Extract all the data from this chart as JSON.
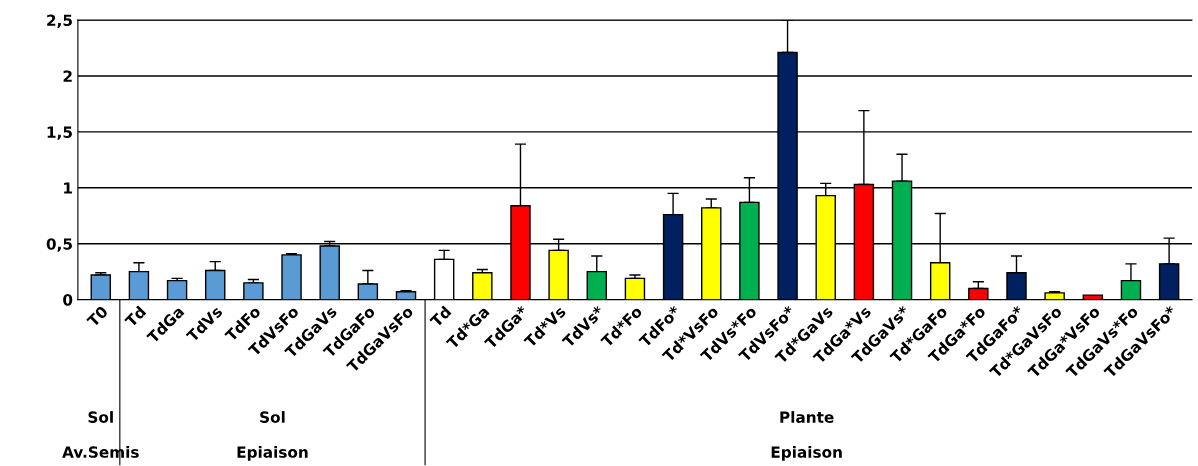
{
  "chart_data": {
    "type": "bar",
    "categories": [
      "T0",
      "Td",
      "TdGa",
      "TdVs",
      "TdFo",
      "TdVsFo",
      "TdGaVs",
      "TdGaFo",
      "TdGaVsFo",
      "Td",
      "Td*Ga",
      "TdGa*",
      "Td*Vs",
      "TdVs*",
      "Td*Fo",
      "TdFo*",
      "Td*VsFo",
      "TdVs*Fo",
      "TdVsFo*",
      "Td*GaVs",
      "TdGa*Vs",
      "TdGaVs*",
      "Td*GaFo",
      "TdGa*Fo",
      "TdGaFo*",
      "Td*GaVsFo",
      "TdGa*VsFo",
      "TdGaVs*Fo",
      "TdGaVsFo*"
    ],
    "values": [
      0.22,
      0.25,
      0.17,
      0.26,
      0.15,
      0.4,
      0.48,
      0.14,
      0.07,
      0.36,
      0.24,
      0.84,
      0.44,
      0.25,
      0.19,
      0.76,
      0.82,
      0.87,
      2.21,
      0.93,
      1.03,
      1.06,
      0.33,
      0.1,
      0.24,
      0.06,
      0.04,
      0.17,
      0.32
    ],
    "errors": [
      [
        0.22,
        0.24
      ],
      [
        0.25,
        0.33
      ],
      [
        0.17,
        0.19
      ],
      [
        0.26,
        0.34
      ],
      [
        0.15,
        0.18
      ],
      [
        0.4,
        0.41
      ],
      [
        0.48,
        0.52
      ],
      [
        0.14,
        0.26
      ],
      [
        0.07,
        0.08
      ],
      [
        0.36,
        0.44
      ],
      [
        0.24,
        0.27
      ],
      [
        0.84,
        1.39
      ],
      [
        0.44,
        0.54
      ],
      [
        0.25,
        0.39
      ],
      [
        0.19,
        0.22
      ],
      [
        0.76,
        0.95
      ],
      [
        0.82,
        0.9
      ],
      [
        0.87,
        1.09
      ],
      [
        2.21,
        2.5
      ],
      [
        0.93,
        1.04
      ],
      [
        1.03,
        1.69
      ],
      [
        1.06,
        1.3
      ],
      [
        0.33,
        0.77
      ],
      [
        0.1,
        0.16
      ],
      [
        0.24,
        0.39
      ],
      [
        0.06,
        0.07
      ],
      null,
      [
        0.17,
        0.32
      ],
      [
        0.32,
        0.55
      ]
    ],
    "colors": [
      "#5b9bd5",
      "#5b9bd5",
      "#5b9bd5",
      "#5b9bd5",
      "#5b9bd5",
      "#5b9bd5",
      "#5b9bd5",
      "#5b9bd5",
      "#5b9bd5",
      "#ffffff",
      "#ffff00",
      "#ff0000",
      "#ffff00",
      "#00b050",
      "#ffff00",
      "#002060",
      "#ffff00",
      "#00b050",
      "#002060",
      "#ffff00",
      "#ff0000",
      "#00b050",
      "#ffff00",
      "#ff0000",
      "#002060",
      "#ffff00",
      "#ff0000",
      "#00b050",
      "#002060"
    ],
    "ylim": [
      0,
      2.5
    ],
    "yticks": [
      {
        "value": 0,
        "label": "0"
      },
      {
        "value": 0.5,
        "label": "0,5"
      },
      {
        "value": 1,
        "label": "1"
      },
      {
        "value": 1.5,
        "label": "1,5"
      },
      {
        "value": 2,
        "label": "2"
      },
      {
        "value": 2.5,
        "label": "2,5"
      }
    ],
    "grid": "y",
    "annotations": [
      "Sol",
      "Sol",
      "Plante",
      "Av.Semis",
      "Epiaison",
      "Epiaison"
    ]
  }
}
